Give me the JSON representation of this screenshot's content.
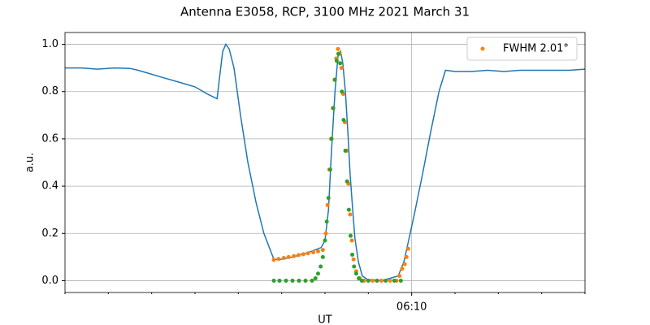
{
  "chart_data": {
    "type": "line",
    "title": "Antenna E3058, RCP, 3100 MHz 2021 March 31",
    "x_label": "UT",
    "y_label": "a.u.",
    "xlim": [
      2,
      14
    ],
    "ylim": [
      -0.05,
      1.05
    ],
    "xticks": [
      {
        "value": 10,
        "label": "06:10"
      }
    ],
    "xminorticks": [
      2,
      3,
      4,
      5,
      6,
      7,
      8,
      9,
      11,
      12,
      13,
      14
    ],
    "yticks": [
      {
        "value": 0,
        "label": "0.0"
      },
      0.2,
      0.4,
      0.6,
      0.8,
      {
        "value": 1,
        "label": "1.0"
      }
    ],
    "grid": true,
    "legend": "upper right",
    "series": [
      {
        "style": "line",
        "color": "#1f77b4",
        "x": [
          2.0,
          2.38,
          2.75,
          3.13,
          3.5,
          3.69,
          3.88,
          4.25,
          4.63,
          5.0,
          5.28,
          5.51,
          5.56,
          5.64,
          5.71,
          5.79,
          5.9,
          6.05,
          6.22,
          6.41,
          6.59,
          6.82,
          6.97,
          7.25,
          7.63,
          7.91,
          8.0,
          8.08,
          8.15,
          8.23,
          8.3,
          8.36,
          8.41,
          8.47,
          8.53,
          8.58,
          8.64,
          8.69,
          8.77,
          8.86,
          8.98,
          9.31,
          9.69,
          9.82,
          9.93,
          10.06,
          10.25,
          10.44,
          10.63,
          10.78,
          11.0,
          11.38,
          11.75,
          12.13,
          12.5,
          12.88,
          13.25,
          13.63,
          14.0
        ],
        "values": [
          0.9,
          0.9,
          0.895,
          0.9,
          0.898,
          0.89,
          0.88,
          0.86,
          0.84,
          0.82,
          0.79,
          0.77,
          0.85,
          0.97,
          1.0,
          0.98,
          0.9,
          0.7,
          0.5,
          0.33,
          0.2,
          0.09,
          0.09,
          0.1,
          0.12,
          0.14,
          0.17,
          0.3,
          0.55,
          0.8,
          0.95,
          0.97,
          0.92,
          0.8,
          0.62,
          0.45,
          0.3,
          0.18,
          0.08,
          0.02,
          0.005,
          0.0,
          0.02,
          0.08,
          0.17,
          0.28,
          0.45,
          0.63,
          0.8,
          0.89,
          0.885,
          0.885,
          0.89,
          0.885,
          0.89,
          0.89,
          0.89,
          0.89,
          0.895
        ]
      },
      {
        "style": "dots",
        "color": "#ff7f0e",
        "name": "FWHM 2.01°",
        "x": [
          6.82,
          6.93,
          7.05,
          7.16,
          7.28,
          7.39,
          7.5,
          7.61,
          7.73,
          7.84,
          7.95,
          8.02,
          8.06,
          8.1,
          8.14,
          8.18,
          8.22,
          8.26,
          8.3,
          8.34,
          8.38,
          8.42,
          8.46,
          8.5,
          8.54,
          8.58,
          8.62,
          8.66,
          8.72,
          8.8,
          8.9,
          9.1,
          9.3,
          9.5,
          9.65,
          9.72,
          9.78,
          9.84,
          9.88,
          9.92
        ],
        "values": [
          0.088,
          0.092,
          0.096,
          0.1,
          0.104,
          0.108,
          0.112,
          0.116,
          0.12,
          0.124,
          0.13,
          0.2,
          0.32,
          0.47,
          0.6,
          0.73,
          0.85,
          0.94,
          0.98,
          0.96,
          0.9,
          0.79,
          0.67,
          0.55,
          0.41,
          0.28,
          0.17,
          0.09,
          0.04,
          0.01,
          0.0,
          0.0,
          0.0,
          0.0,
          0.0,
          0.02,
          0.05,
          0.07,
          0.1,
          0.135
        ]
      },
      {
        "style": "dots",
        "color": "#2ca02c",
        "x": [
          6.82,
          6.95,
          7.1,
          7.25,
          7.4,
          7.55,
          7.7,
          7.78,
          7.84,
          7.9,
          7.95,
          8.0,
          8.04,
          8.08,
          8.12,
          8.15,
          8.19,
          8.23,
          8.27,
          8.31,
          8.35,
          8.39,
          8.43,
          8.47,
          8.51,
          8.55,
          8.59,
          8.63,
          8.67,
          8.72,
          8.78,
          8.85,
          9.0,
          9.2,
          9.4,
          9.6,
          9.75
        ],
        "values": [
          0,
          0,
          0,
          0,
          0,
          0,
          0,
          0.01,
          0.03,
          0.06,
          0.1,
          0.17,
          0.25,
          0.35,
          0.47,
          0.6,
          0.73,
          0.85,
          0.93,
          0.96,
          0.92,
          0.8,
          0.68,
          0.55,
          0.42,
          0.3,
          0.19,
          0.11,
          0.06,
          0.03,
          0.01,
          0,
          0,
          0,
          0,
          0,
          0
        ]
      }
    ]
  }
}
